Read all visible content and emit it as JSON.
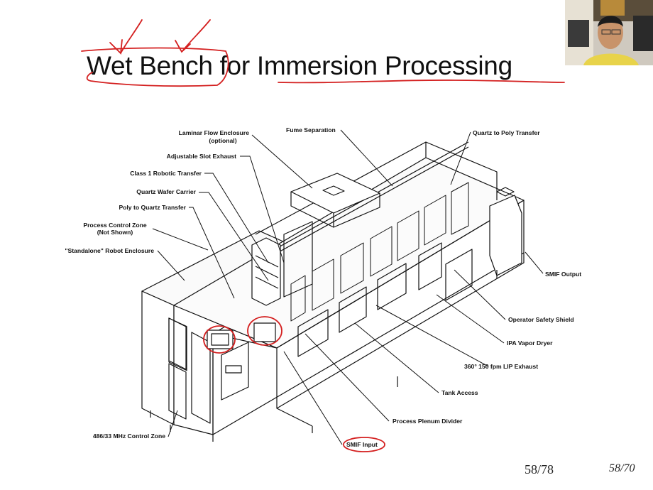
{
  "slide": {
    "title": "Wet Bench for Immersion Processing",
    "page_number": "58/78",
    "page_number_alt": "58/70"
  },
  "diagram": {
    "labels": {
      "laminar_flow_enclosure": "Laminar Flow Enclosure",
      "laminar_flow_optional": "(optional)",
      "adjustable_slot_exhaust": "Adjustable Slot Exhaust",
      "class1_robotic_transfer": "Class 1 Robotic Transfer",
      "quartz_wafer_carrier": "Quartz Wafer Carrier",
      "poly_to_quartz_transfer": "Poly to Quartz Transfer",
      "process_control_zone": "Process Control Zone",
      "process_control_not_shown": "(Not Shown)",
      "standalone_robot_enclosure": "\"Standalone\" Robot Enclosure",
      "fume_separation": "Fume Separation",
      "quartz_to_poly_transfer": "Quartz to Poly Transfer",
      "smif_output": "SMIF Output",
      "operator_safety_shield": "Operator Safety Shield",
      "ipa_vapor_dryer": "IPA Vapor Dryer",
      "lip_exhaust": "360° 150 fpm LIP Exhaust",
      "tank_access": "Tank Access",
      "process_plenum_divider": "Process Plenum Divider",
      "smif_input": "SMIF Input",
      "control_zone_486": "486/33 MHz Control Zone"
    }
  },
  "annotation_color": "#d42020"
}
